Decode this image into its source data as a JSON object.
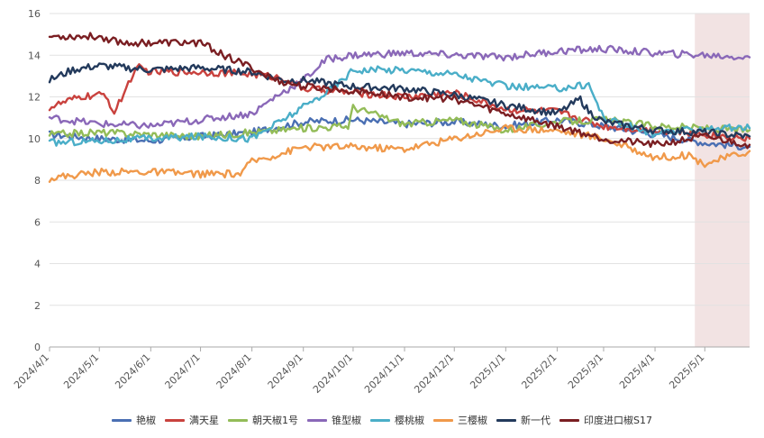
{
  "chart_data": {
    "type": "line",
    "title": "",
    "xlabel": "",
    "ylabel": "",
    "ylim": [
      0,
      16
    ],
    "y_ticks": [
      "0",
      "2",
      "4",
      "6",
      "8",
      "10",
      "12",
      "14",
      "16"
    ],
    "x_range": [
      "2024/4/1",
      "2025/5/28"
    ],
    "x_ticks": [
      "2024/4/1",
      "2024/5/1",
      "2024/6/1",
      "2024/7/1",
      "2024/8/1",
      "2024/9/1",
      "2024/10/1",
      "2024/11/1",
      "2024/12/1",
      "2025/1/1",
      "2025/2/1",
      "2025/3/1",
      "2025/4/1",
      "2025/5/1"
    ],
    "highlight_range": [
      "2025/4/25",
      "2025/5/28"
    ],
    "highlight_color": "#f2e3e3",
    "grid": "horizontal",
    "legend_position": "bottom",
    "series": [
      {
        "name": "艳椒",
        "color": "#4a6fb3",
        "x": [
          "2024/4/1",
          "2024/5/1",
          "2024/6/1",
          "2024/7/1",
          "2024/8/1",
          "2024/9/1",
          "2024/10/1",
          "2024/11/1",
          "2024/12/1",
          "2025/1/1",
          "2025/2/1",
          "2025/3/1",
          "2025/4/1",
          "2025/5/1",
          "2025/5/28"
        ],
        "values": [
          10.2,
          10.0,
          9.9,
          10.1,
          10.3,
          10.8,
          10.9,
          10.7,
          10.8,
          10.6,
          10.9,
          10.6,
          10.2,
          9.8,
          9.6
        ]
      },
      {
        "name": "满天星",
        "color": "#c9423e",
        "x": [
          "2024/4/1",
          "2024/4/20",
          "2024/5/5",
          "2024/5/10",
          "2024/5/20",
          "2024/5/25",
          "2024/6/1",
          "2024/7/1",
          "2024/8/1",
          "2024/8/20",
          "2024/9/1",
          "2024/10/1",
          "2024/11/1",
          "2024/12/1",
          "2025/1/1",
          "2025/2/1",
          "2025/3/1",
          "2025/4/1",
          "2025/5/1",
          "2025/5/28"
        ],
        "values": [
          11.5,
          12.0,
          12.1,
          11.2,
          12.9,
          13.4,
          13.2,
          13.2,
          13.1,
          12.9,
          12.4,
          12.2,
          12.0,
          12.2,
          11.4,
          11.3,
          10.6,
          10.4,
          10.2,
          10.0
        ]
      },
      {
        "name": "朝天椒1号",
        "color": "#93bc58",
        "x": [
          "2024/4/1",
          "2024/5/1",
          "2024/6/1",
          "2024/7/1",
          "2024/8/1",
          "2024/9/1",
          "2024/9/28",
          "2024/10/1",
          "2024/11/1",
          "2024/12/1",
          "2025/1/1",
          "2025/2/1",
          "2025/3/1",
          "2025/4/1",
          "2025/5/1",
          "2025/5/28"
        ],
        "values": [
          10.2,
          10.3,
          10.2,
          10.1,
          10.3,
          10.5,
          10.6,
          11.5,
          10.7,
          10.9,
          10.4,
          10.8,
          10.9,
          10.6,
          10.5,
          10.4
        ]
      },
      {
        "name": "锥型椒",
        "color": "#8a68b8",
        "x": [
          "2024/4/1",
          "2024/5/1",
          "2024/6/1",
          "2024/7/1",
          "2024/8/1",
          "2024/8/15",
          "2024/9/1",
          "2024/9/15",
          "2024/10/1",
          "2024/11/1",
          "2024/12/1",
          "2025/1/1",
          "2025/2/1",
          "2025/3/1",
          "2025/4/1",
          "2025/5/1",
          "2025/5/28"
        ],
        "values": [
          11.0,
          10.7,
          10.6,
          10.9,
          11.2,
          12.0,
          12.8,
          13.8,
          14.0,
          14.1,
          14.0,
          13.9,
          14.2,
          14.3,
          14.1,
          14.0,
          13.9
        ]
      },
      {
        "name": "樱桃椒",
        "color": "#4aaec8",
        "x": [
          "2024/4/1",
          "2024/5/1",
          "2024/6/1",
          "2024/7/1",
          "2024/8/1",
          "2024/9/1",
          "2024/9/20",
          "2024/10/1",
          "2024/11/1",
          "2024/12/1",
          "2025/1/1",
          "2025/2/1",
          "2025/2/20",
          "2025/3/1",
          "2025/4/1",
          "2025/5/1",
          "2025/5/28"
        ],
        "values": [
          9.8,
          9.9,
          10.0,
          10.1,
          10.0,
          11.5,
          12.5,
          13.3,
          13.3,
          13.1,
          12.5,
          12.4,
          12.6,
          11.0,
          10.2,
          10.5,
          10.5
        ]
      },
      {
        "name": "三樱椒",
        "color": "#f0994a",
        "x": [
          "2024/4/1",
          "2024/5/1",
          "2024/6/1",
          "2024/7/1",
          "2024/7/25",
          "2024/8/1",
          "2024/8/15",
          "2024/9/1",
          "2024/10/1",
          "2024/11/1",
          "2024/12/1",
          "2025/1/1",
          "2025/2/1",
          "2025/3/1",
          "2025/4/1",
          "2025/4/20",
          "2025/5/1",
          "2025/5/28"
        ],
        "values": [
          8.1,
          8.4,
          8.4,
          8.3,
          8.3,
          8.9,
          9.2,
          9.6,
          9.6,
          9.5,
          10.0,
          10.5,
          10.4,
          10.0,
          9.1,
          9.2,
          8.8,
          9.4
        ]
      },
      {
        "name": "新一代",
        "color": "#233a5c",
        "x": [
          "2024/4/1",
          "2024/4/15",
          "2024/5/1",
          "2024/6/1",
          "2024/7/1",
          "2024/8/1",
          "2024/8/20",
          "2024/9/1",
          "2024/10/1",
          "2024/11/1",
          "2024/12/1",
          "2025/1/1",
          "2025/2/1",
          "2025/2/15",
          "2025/2/20",
          "2025/3/1",
          "2025/4/1",
          "2025/5/1",
          "2025/5/28"
        ],
        "values": [
          12.8,
          13.3,
          13.5,
          13.3,
          13.4,
          13.2,
          12.8,
          12.8,
          12.5,
          12.4,
          12.1,
          11.6,
          11.2,
          11.9,
          11.3,
          10.8,
          10.4,
          10.3,
          10.1
        ]
      },
      {
        "name": "印度进口椒S17",
        "color": "#7a1e22",
        "x": [
          "2024/4/1",
          "2024/5/1",
          "2024/5/15",
          "2024/6/1",
          "2024/7/1",
          "2024/7/20",
          "2024/8/1",
          "2024/8/15",
          "2024/9/1",
          "2024/10/1",
          "2024/11/1",
          "2024/12/1",
          "2025/1/1",
          "2025/2/1",
          "2025/3/1",
          "2025/4/1",
          "2025/5/1",
          "2025/5/28"
        ],
        "values": [
          14.9,
          14.9,
          14.6,
          14.6,
          14.6,
          13.8,
          13.4,
          12.8,
          12.5,
          12.3,
          12.0,
          11.9,
          11.2,
          10.6,
          10.0,
          9.7,
          10.1,
          9.7
        ]
      }
    ]
  }
}
